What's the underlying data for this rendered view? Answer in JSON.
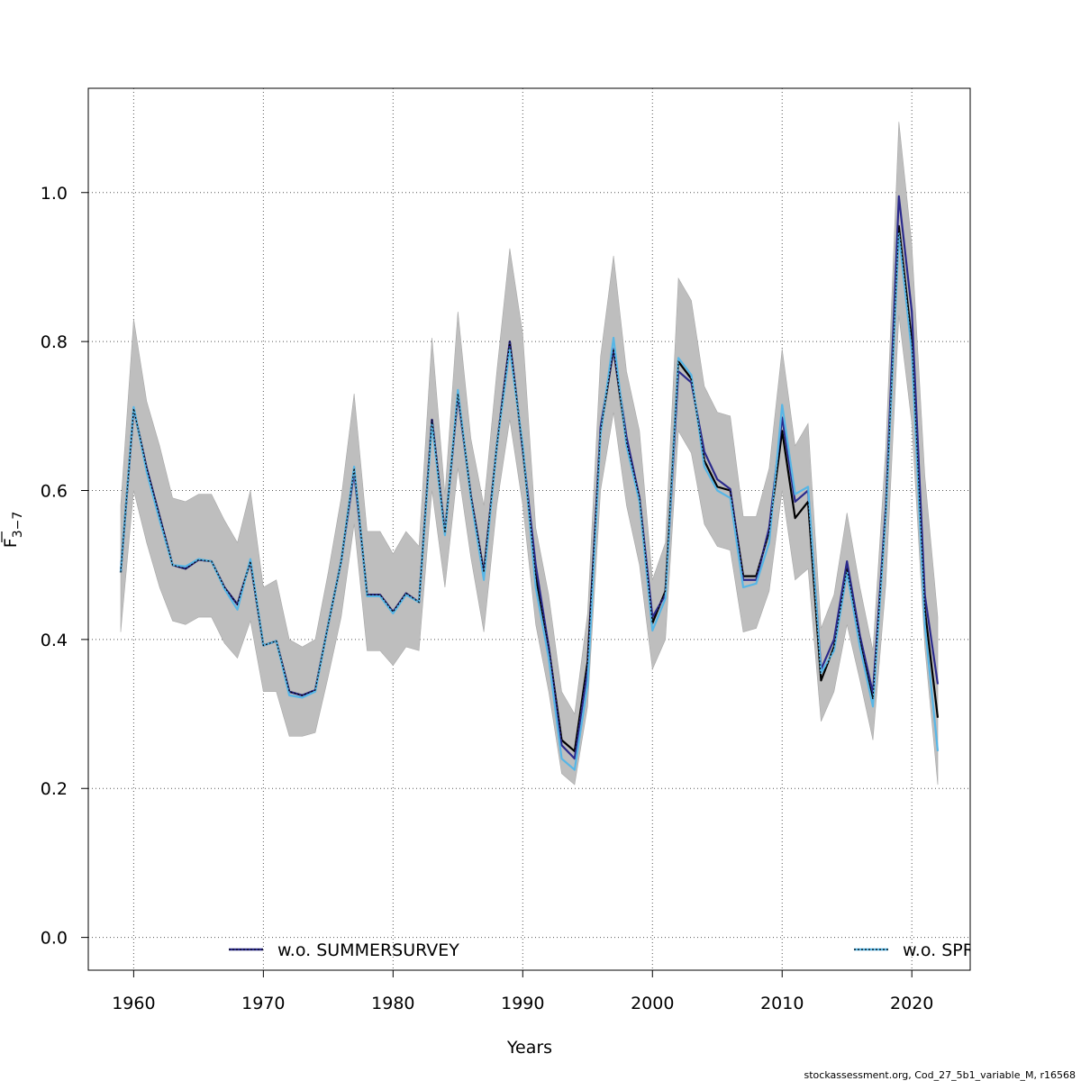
{
  "chart_data": {
    "type": "line",
    "xlabel": "Years",
    "ylabel_main": "F",
    "ylabel_sub": "3−7",
    "xlim": [
      1956.5,
      2024.5
    ],
    "ylim": [
      -0.044,
      1.14
    ],
    "x_ticks": [
      1960,
      1970,
      1980,
      1990,
      2000,
      2010,
      2020
    ],
    "x_tick_labels": [
      "1960",
      "1970",
      "1980",
      "1990",
      "2000",
      "2010",
      "2020"
    ],
    "y_ticks": [
      0.0,
      0.2,
      0.4,
      0.6,
      0.8,
      1.0
    ],
    "y_tick_labels": [
      "0.0",
      "0.2",
      "0.4",
      "0.6",
      "0.8",
      "1.0"
    ],
    "grid": true,
    "legend_position": "bottom",
    "legend": [
      {
        "label": "w.o. SUMMERSURVEY",
        "color": "#2b2a8c",
        "dashed": false
      },
      {
        "label": "w.o. SPR",
        "color": "#57b6e6",
        "dashed": true
      }
    ],
    "footer": "stockassessment.org, Cod_27_5b1_variable_M, r16568",
    "colors": {
      "band": "#bebebe",
      "base": "#000000",
      "summer": "#2b2a8c",
      "spr": "#57b6e6",
      "grid": "#555555"
    },
    "x": [
      1959,
      1960,
      1961,
      1962,
      1963,
      1964,
      1965,
      1966,
      1967,
      1968,
      1969,
      1970,
      1971,
      1972,
      1973,
      1974,
      1975,
      1976,
      1977,
      1978,
      1979,
      1980,
      1981,
      1982,
      1983,
      1984,
      1985,
      1986,
      1987,
      1988,
      1989,
      1990,
      1991,
      1992,
      1993,
      1994,
      1995,
      1996,
      1997,
      1998,
      1999,
      2000,
      2001,
      2002,
      2003,
      2004,
      2005,
      2006,
      2007,
      2008,
      2009,
      2010,
      2011,
      2012,
      2013,
      2014,
      2015,
      2016,
      2017,
      2018,
      2019,
      2020,
      2021,
      2022
    ],
    "band_upper": [
      0.58,
      0.83,
      0.72,
      0.66,
      0.59,
      0.585,
      0.595,
      0.595,
      0.56,
      0.53,
      0.6,
      0.47,
      0.48,
      0.4,
      0.39,
      0.4,
      0.49,
      0.59,
      0.73,
      0.545,
      0.545,
      0.515,
      0.545,
      0.525,
      0.805,
      0.595,
      0.84,
      0.67,
      0.58,
      0.76,
      0.925,
      0.81,
      0.55,
      0.46,
      0.33,
      0.3,
      0.435,
      0.78,
      0.915,
      0.76,
      0.68,
      0.48,
      0.53,
      0.885,
      0.855,
      0.74,
      0.705,
      0.7,
      0.565,
      0.565,
      0.63,
      0.79,
      0.66,
      0.69,
      0.415,
      0.46,
      0.57,
      0.47,
      0.385,
      0.66,
      1.095,
      0.93,
      0.62,
      0.43
    ],
    "band_lower": [
      0.41,
      0.6,
      0.53,
      0.47,
      0.425,
      0.42,
      0.43,
      0.43,
      0.395,
      0.375,
      0.425,
      0.33,
      0.33,
      0.27,
      0.27,
      0.275,
      0.35,
      0.43,
      0.555,
      0.385,
      0.385,
      0.365,
      0.39,
      0.385,
      0.6,
      0.47,
      0.63,
      0.51,
      0.41,
      0.58,
      0.695,
      0.58,
      0.42,
      0.33,
      0.22,
      0.205,
      0.31,
      0.6,
      0.705,
      0.58,
      0.5,
      0.36,
      0.4,
      0.68,
      0.65,
      0.555,
      0.525,
      0.52,
      0.41,
      0.415,
      0.465,
      0.6,
      0.48,
      0.495,
      0.29,
      0.33,
      0.42,
      0.345,
      0.265,
      0.475,
      0.835,
      0.69,
      0.39,
      0.205
    ],
    "series": [
      {
        "name": "",
        "values": [
          0.49,
          0.71,
          0.63,
          0.565,
          0.5,
          0.495,
          0.507,
          0.505,
          0.47,
          0.447,
          0.505,
          0.392,
          0.398,
          0.33,
          0.325,
          0.332,
          0.42,
          0.505,
          0.63,
          0.46,
          0.46,
          0.437,
          0.462,
          0.45,
          0.695,
          0.543,
          0.73,
          0.593,
          0.49,
          0.66,
          0.8,
          0.655,
          0.485,
          0.39,
          0.265,
          0.25,
          0.37,
          0.68,
          0.79,
          0.665,
          0.59,
          0.422,
          0.465,
          0.773,
          0.75,
          0.64,
          0.605,
          0.6,
          0.485,
          0.485,
          0.545,
          0.68,
          0.563,
          0.585,
          0.345,
          0.39,
          0.495,
          0.4,
          0.32,
          0.575,
          0.955,
          0.8,
          0.44,
          0.295
        ]
      },
      {
        "name": "w.o. SUMMERSURVEY",
        "values": [
          0.49,
          0.71,
          0.63,
          0.565,
          0.5,
          0.495,
          0.507,
          0.505,
          0.47,
          0.447,
          0.505,
          0.392,
          0.398,
          0.33,
          0.325,
          0.332,
          0.42,
          0.505,
          0.625,
          0.46,
          0.46,
          0.437,
          0.462,
          0.45,
          0.695,
          0.543,
          0.728,
          0.593,
          0.488,
          0.66,
          0.8,
          0.655,
          0.5,
          0.39,
          0.258,
          0.24,
          0.36,
          0.685,
          0.79,
          0.672,
          0.59,
          0.43,
          0.46,
          0.76,
          0.745,
          0.652,
          0.615,
          0.602,
          0.48,
          0.48,
          0.55,
          0.698,
          0.585,
          0.6,
          0.36,
          0.4,
          0.505,
          0.405,
          0.328,
          0.58,
          0.995,
          0.84,
          0.46,
          0.34
        ]
      },
      {
        "name": "w.o. SPR",
        "values": [
          0.49,
          0.712,
          0.625,
          0.56,
          0.5,
          0.498,
          0.508,
          0.505,
          0.468,
          0.44,
          0.508,
          0.392,
          0.398,
          0.325,
          0.322,
          0.33,
          0.42,
          0.505,
          0.632,
          0.458,
          0.458,
          0.435,
          0.46,
          0.45,
          0.69,
          0.54,
          0.735,
          0.59,
          0.48,
          0.66,
          0.79,
          0.66,
          0.47,
          0.375,
          0.24,
          0.225,
          0.34,
          0.675,
          0.805,
          0.66,
          0.585,
          0.412,
          0.455,
          0.778,
          0.755,
          0.632,
          0.6,
          0.59,
          0.47,
          0.475,
          0.53,
          0.715,
          0.595,
          0.605,
          0.355,
          0.385,
          0.49,
          0.39,
          0.31,
          0.57,
          0.945,
          0.785,
          0.42,
          0.25
        ]
      }
    ]
  }
}
